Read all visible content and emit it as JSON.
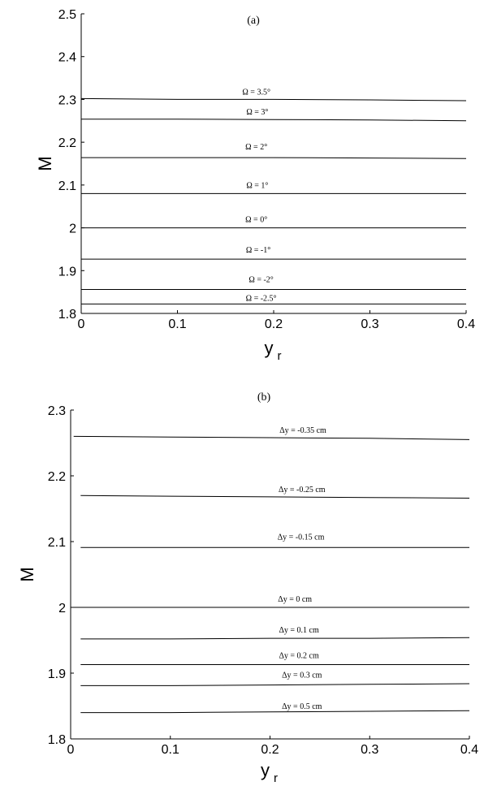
{
  "chart_data": [
    {
      "type": "line",
      "panel_label": "(a)",
      "xlabel": "y",
      "xlabel_sub": "r",
      "ylabel": "M",
      "xlim": [
        0,
        0.4
      ],
      "ylim": [
        1.8,
        2.5
      ],
      "x_ticks": [
        "0",
        "0.1",
        "0.2",
        "0.3",
        "0.4"
      ],
      "y_ticks": [
        "1.8",
        "1.9",
        "2",
        "2.1",
        "2.2",
        "2.3",
        "2.4",
        "2.5"
      ],
      "grid": false,
      "legend": "none",
      "series": [
        {
          "name": "Ω = 3.5°",
          "x": [
            0,
            0.1,
            0.2,
            0.3,
            0.4
          ],
          "values": [
            2.302,
            2.3,
            2.3,
            2.299,
            2.297
          ]
        },
        {
          "name": "Ω = 3°",
          "x": [
            0,
            0.1,
            0.2,
            0.3,
            0.4
          ],
          "values": [
            2.254,
            2.254,
            2.253,
            2.252,
            2.25
          ]
        },
        {
          "name": "Ω = 2°",
          "x": [
            0,
            0.1,
            0.2,
            0.3,
            0.4
          ],
          "values": [
            2.164,
            2.164,
            2.164,
            2.163,
            2.162
          ]
        },
        {
          "name": "Ω = 1°",
          "x": [
            0,
            0.1,
            0.2,
            0.3,
            0.4
          ],
          "values": [
            2.08,
            2.08,
            2.08,
            2.08,
            2.08
          ]
        },
        {
          "name": "Ω = 0°",
          "x": [
            0,
            0.1,
            0.2,
            0.3,
            0.4
          ],
          "values": [
            2.0,
            2.0,
            2.0,
            2.0,
            2.0
          ]
        },
        {
          "name": "Ω = -1°",
          "x": [
            0,
            0.1,
            0.2,
            0.3,
            0.4
          ],
          "values": [
            1.927,
            1.927,
            1.927,
            1.927,
            1.927
          ]
        },
        {
          "name": "Ω = -2°",
          "x": [
            0,
            0.1,
            0.2,
            0.3,
            0.4
          ],
          "values": [
            1.856,
            1.856,
            1.856,
            1.856,
            1.856
          ]
        },
        {
          "name": "Ω = -2.5°",
          "x": [
            0,
            0.1,
            0.2,
            0.3,
            0.4
          ],
          "values": [
            1.822,
            1.822,
            1.822,
            1.822,
            1.822
          ]
        }
      ],
      "label_x": [
        0.182,
        0.183,
        0.182,
        0.183,
        0.182,
        0.184,
        0.187,
        0.187
      ]
    },
    {
      "type": "line",
      "panel_label": "(b)",
      "xlabel": "y",
      "xlabel_sub": "r",
      "ylabel": "M",
      "xlim": [
        0,
        0.4
      ],
      "ylim": [
        1.8,
        2.3
      ],
      "x_ticks": [
        "0",
        "0.1",
        "0.2",
        "0.3",
        "0.4"
      ],
      "y_ticks": [
        "1.8",
        "1.9",
        "2",
        "2.1",
        "2.2",
        "2.3"
      ],
      "grid": false,
      "legend": "none",
      "series": [
        {
          "name": "Δy = -0.35 cm",
          "x": [
            0.003,
            0.1,
            0.2,
            0.3,
            0.4
          ],
          "values": [
            2.26,
            2.259,
            2.258,
            2.257,
            2.255
          ]
        },
        {
          "name": "Δy = -0.25 cm",
          "x": [
            0.01,
            0.1,
            0.2,
            0.3,
            0.4
          ],
          "values": [
            2.17,
            2.169,
            2.168,
            2.167,
            2.166
          ]
        },
        {
          "name": "Δy = -0.15 cm",
          "x": [
            0.01,
            0.1,
            0.2,
            0.3,
            0.4
          ],
          "values": [
            2.091,
            2.091,
            2.091,
            2.091,
            2.091
          ]
        },
        {
          "name": "Δy = 0 cm",
          "x": [
            0.003,
            0.1,
            0.2,
            0.3,
            0.4
          ],
          "values": [
            2.0,
            2.0,
            2.0,
            2.0,
            2.0
          ]
        },
        {
          "name": "Δy = 0.1 cm",
          "x": [
            0.01,
            0.1,
            0.2,
            0.3,
            0.4
          ],
          "values": [
            1.952,
            1.952,
            1.953,
            1.953,
            1.954
          ]
        },
        {
          "name": "Δy = 0.2 cm",
          "x": [
            0.01,
            0.1,
            0.2,
            0.3,
            0.4
          ],
          "values": [
            1.913,
            1.913,
            1.913,
            1.913,
            1.913
          ]
        },
        {
          "name": "Δy = 0.3 cm",
          "x": [
            0.01,
            0.1,
            0.2,
            0.3,
            0.4
          ],
          "values": [
            1.881,
            1.881,
            1.882,
            1.883,
            1.884
          ]
        },
        {
          "name": "Δy = 0.5 cm",
          "x": [
            0.01,
            0.1,
            0.2,
            0.3,
            0.4
          ],
          "values": [
            1.84,
            1.84,
            1.841,
            1.842,
            1.843
          ]
        }
      ],
      "label_x": [
        0.233,
        0.232,
        0.231,
        0.225,
        0.229,
        0.229,
        0.232,
        0.232
      ]
    }
  ]
}
